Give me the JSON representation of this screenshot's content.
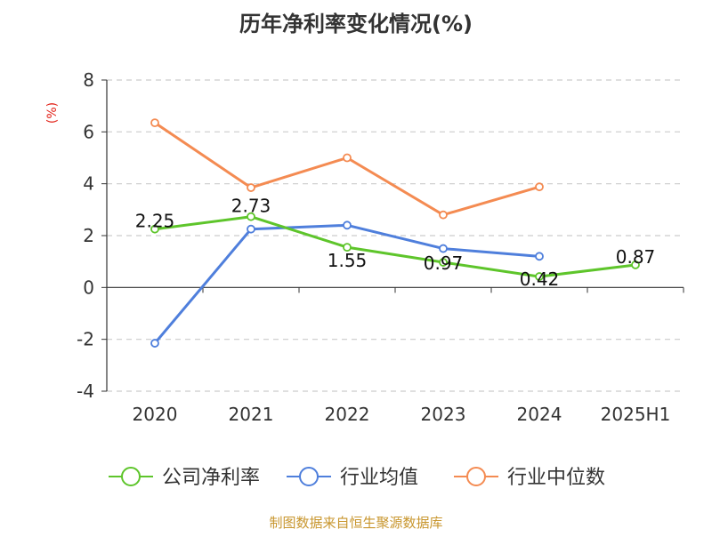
{
  "chart_data": {
    "type": "line",
    "title": "历年净利率变化情况(%)",
    "ylabel": "(%)",
    "xlabel": "",
    "categories": [
      "2020",
      "2021",
      "2022",
      "2023",
      "2024",
      "2025H1"
    ],
    "ylim": [
      -4,
      8
    ],
    "yticks": [
      -4,
      -2,
      0,
      2,
      4,
      6,
      8
    ],
    "grid": true,
    "legend_position": "bottom",
    "series": [
      {
        "name": "公司净利率",
        "color": "#5ec52b",
        "values": [
          2.25,
          2.73,
          1.55,
          0.97,
          0.42,
          0.87
        ],
        "labels": [
          "2.25",
          "2.73",
          "1.55",
          "0.97",
          "0.42",
          "0.87"
        ]
      },
      {
        "name": "行业均值",
        "color": "#4f7fdc",
        "values": [
          -2.15,
          2.25,
          2.4,
          1.5,
          1.2,
          null
        ]
      },
      {
        "name": "行业中位数",
        "color": "#f48b52",
        "values": [
          6.35,
          3.85,
          5.0,
          2.8,
          3.88,
          null
        ]
      }
    ],
    "source": "制图数据来自恒生聚源数据库"
  }
}
